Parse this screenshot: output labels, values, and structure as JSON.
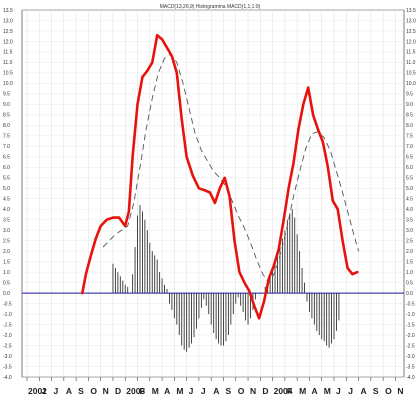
{
  "chart_data": {
    "type": "line",
    "title": "MACD(13,26,9) Histogramma MACD(1,1,1:9)",
    "ylim": [
      -4.0,
      13.5
    ],
    "ytick_step": 0.5,
    "x_labels": [
      "2002",
      "J",
      "J",
      "A",
      "S",
      "O",
      "N",
      "D",
      "2003",
      "F",
      "M",
      "A",
      "M",
      "J",
      "J",
      "A",
      "S",
      "O",
      "N",
      "D",
      "2004",
      "F",
      "M",
      "A",
      "M",
      "J",
      "J",
      "A",
      "S",
      "O",
      "N"
    ],
    "grid": true,
    "zero_line": 0,
    "series": [
      {
        "role": "macd",
        "color": "#e8120c",
        "points": [
          [
            4.5,
            0.0
          ],
          [
            4.8,
            0.9
          ],
          [
            5.2,
            1.8
          ],
          [
            5.6,
            2.6
          ],
          [
            6.0,
            3.2
          ],
          [
            6.5,
            3.5
          ],
          [
            7.0,
            3.6
          ],
          [
            7.5,
            3.6
          ],
          [
            8.0,
            3.2
          ],
          [
            8.3,
            3.9
          ],
          [
            8.6,
            6.5
          ],
          [
            9.0,
            9.0
          ],
          [
            9.4,
            10.3
          ],
          [
            9.8,
            10.6
          ],
          [
            10.2,
            11.0
          ],
          [
            10.6,
            12.3
          ],
          [
            11.0,
            12.1
          ],
          [
            11.4,
            11.7
          ],
          [
            11.8,
            11.3
          ],
          [
            12.2,
            10.5
          ],
          [
            12.6,
            8.3
          ],
          [
            13.0,
            6.5
          ],
          [
            13.5,
            5.6
          ],
          [
            14.0,
            5.0
          ],
          [
            14.5,
            4.9
          ],
          [
            14.9,
            4.8
          ],
          [
            15.3,
            4.3
          ],
          [
            15.7,
            5.0
          ],
          [
            16.1,
            5.5
          ],
          [
            16.5,
            4.6
          ],
          [
            16.9,
            2.5
          ],
          [
            17.3,
            1.0
          ],
          [
            17.7,
            0.5
          ],
          [
            18.1,
            0.1
          ],
          [
            18.5,
            -0.6
          ],
          [
            18.9,
            -1.2
          ],
          [
            19.3,
            -0.4
          ],
          [
            19.7,
            0.7
          ],
          [
            20.1,
            1.3
          ],
          [
            20.5,
            2.1
          ],
          [
            20.9,
            3.5
          ],
          [
            21.3,
            5.0
          ],
          [
            21.7,
            6.2
          ],
          [
            22.1,
            7.8
          ],
          [
            22.5,
            9.0
          ],
          [
            22.9,
            9.8
          ],
          [
            23.3,
            8.5
          ],
          [
            23.7,
            7.8
          ],
          [
            24.1,
            7.2
          ],
          [
            24.5,
            6.0
          ],
          [
            24.9,
            4.4
          ],
          [
            25.3,
            4.0
          ],
          [
            25.7,
            2.5
          ],
          [
            26.1,
            1.2
          ],
          [
            26.5,
            0.9
          ],
          [
            26.9,
            1.0
          ]
        ]
      },
      {
        "role": "signal",
        "color": "#555555",
        "points": [
          [
            6.2,
            2.2
          ],
          [
            6.7,
            2.5
          ],
          [
            7.2,
            2.8
          ],
          [
            7.7,
            3.0
          ],
          [
            8.2,
            3.2
          ],
          [
            8.7,
            4.3
          ],
          [
            9.2,
            6.0
          ],
          [
            9.7,
            7.8
          ],
          [
            10.2,
            9.3
          ],
          [
            10.7,
            10.5
          ],
          [
            11.2,
            11.2
          ],
          [
            11.7,
            11.4
          ],
          [
            12.2,
            11.0
          ],
          [
            12.7,
            10.0
          ],
          [
            13.2,
            8.8
          ],
          [
            13.7,
            7.6
          ],
          [
            14.2,
            6.8
          ],
          [
            14.7,
            6.3
          ],
          [
            15.2,
            5.8
          ],
          [
            15.7,
            5.5
          ],
          [
            16.2,
            5.1
          ],
          [
            16.7,
            4.4
          ],
          [
            17.2,
            3.7
          ],
          [
            17.7,
            3.1
          ],
          [
            18.2,
            2.4
          ],
          [
            18.7,
            1.6
          ],
          [
            19.2,
            0.9
          ],
          [
            19.7,
            0.5
          ],
          [
            20.2,
            1.0
          ],
          [
            20.7,
            2.0
          ],
          [
            21.2,
            3.2
          ],
          [
            21.7,
            4.6
          ],
          [
            22.2,
            5.8
          ],
          [
            22.7,
            6.9
          ],
          [
            23.2,
            7.6
          ],
          [
            23.7,
            7.7
          ],
          [
            24.2,
            7.4
          ],
          [
            24.7,
            6.8
          ],
          [
            25.2,
            5.8
          ],
          [
            25.7,
            4.8
          ],
          [
            26.2,
            3.7
          ],
          [
            26.7,
            2.6
          ],
          [
            27.0,
            2.0
          ]
        ]
      }
    ],
    "histogram": {
      "color": "#333333",
      "points": [
        [
          7.0,
          1.4
        ],
        [
          7.2,
          1.2
        ],
        [
          7.4,
          1.0
        ],
        [
          7.6,
          0.8
        ],
        [
          7.8,
          0.6
        ],
        [
          8.0,
          0.4
        ],
        [
          8.2,
          0.3
        ],
        [
          8.6,
          0.9
        ],
        [
          8.8,
          2.2
        ],
        [
          9.0,
          3.7
        ],
        [
          9.2,
          4.2
        ],
        [
          9.4,
          3.9
        ],
        [
          9.6,
          3.5
        ],
        [
          9.8,
          3.0
        ],
        [
          10.0,
          2.4
        ],
        [
          10.2,
          2.0
        ],
        [
          10.4,
          1.8
        ],
        [
          10.6,
          1.6
        ],
        [
          10.8,
          1.0
        ],
        [
          11.0,
          0.7
        ],
        [
          11.2,
          0.4
        ],
        [
          11.4,
          0.2
        ],
        [
          11.6,
          -0.5
        ],
        [
          11.8,
          -0.8
        ],
        [
          12.0,
          -1.2
        ],
        [
          12.2,
          -1.5
        ],
        [
          12.4,
          -2.0
        ],
        [
          12.6,
          -2.5
        ],
        [
          12.8,
          -2.7
        ],
        [
          13.0,
          -2.8
        ],
        [
          13.2,
          -2.6
        ],
        [
          13.4,
          -2.4
        ],
        [
          13.6,
          -2.1
        ],
        [
          13.8,
          -1.7
        ],
        [
          14.0,
          -1.2
        ],
        [
          14.2,
          -0.7
        ],
        [
          14.4,
          -0.3
        ],
        [
          14.6,
          -0.6
        ],
        [
          14.8,
          -1.0
        ],
        [
          15.0,
          -1.5
        ],
        [
          15.2,
          -1.9
        ],
        [
          15.4,
          -2.2
        ],
        [
          15.6,
          -2.4
        ],
        [
          15.8,
          -2.5
        ],
        [
          16.0,
          -2.5
        ],
        [
          16.2,
          -2.3
        ],
        [
          16.4,
          -2.0
        ],
        [
          16.6,
          -1.5
        ],
        [
          16.8,
          -1.0
        ],
        [
          17.0,
          -0.5
        ],
        [
          17.2,
          -0.2
        ],
        [
          17.4,
          -0.6
        ],
        [
          17.6,
          -0.9
        ],
        [
          17.8,
          -1.3
        ],
        [
          18.0,
          -1.5
        ],
        [
          18.2,
          -1.2
        ],
        [
          18.4,
          -0.8
        ],
        [
          18.6,
          -0.3
        ],
        [
          19.4,
          0.3
        ],
        [
          19.6,
          0.6
        ],
        [
          19.8,
          0.9
        ],
        [
          20.0,
          1.2
        ],
        [
          20.2,
          1.5
        ],
        [
          20.4,
          1.8
        ],
        [
          20.6,
          2.2
        ],
        [
          20.8,
          2.6
        ],
        [
          21.0,
          3.0
        ],
        [
          21.2,
          3.5
        ],
        [
          21.4,
          3.8
        ],
        [
          21.6,
          4.0
        ],
        [
          21.8,
          3.6
        ],
        [
          22.0,
          2.8
        ],
        [
          22.2,
          2.0
        ],
        [
          22.4,
          1.2
        ],
        [
          22.6,
          0.5
        ],
        [
          22.8,
          -0.4
        ],
        [
          23.0,
          -0.9
        ],
        [
          23.2,
          -1.2
        ],
        [
          23.4,
          -1.5
        ],
        [
          23.6,
          -1.8
        ],
        [
          23.8,
          -2.0
        ],
        [
          24.0,
          -2.2
        ],
        [
          24.2,
          -2.3
        ],
        [
          24.4,
          -2.5
        ],
        [
          24.6,
          -2.6
        ],
        [
          24.8,
          -2.4
        ],
        [
          25.0,
          -2.2
        ],
        [
          25.2,
          -1.8
        ],
        [
          25.4,
          -1.3
        ]
      ]
    }
  }
}
